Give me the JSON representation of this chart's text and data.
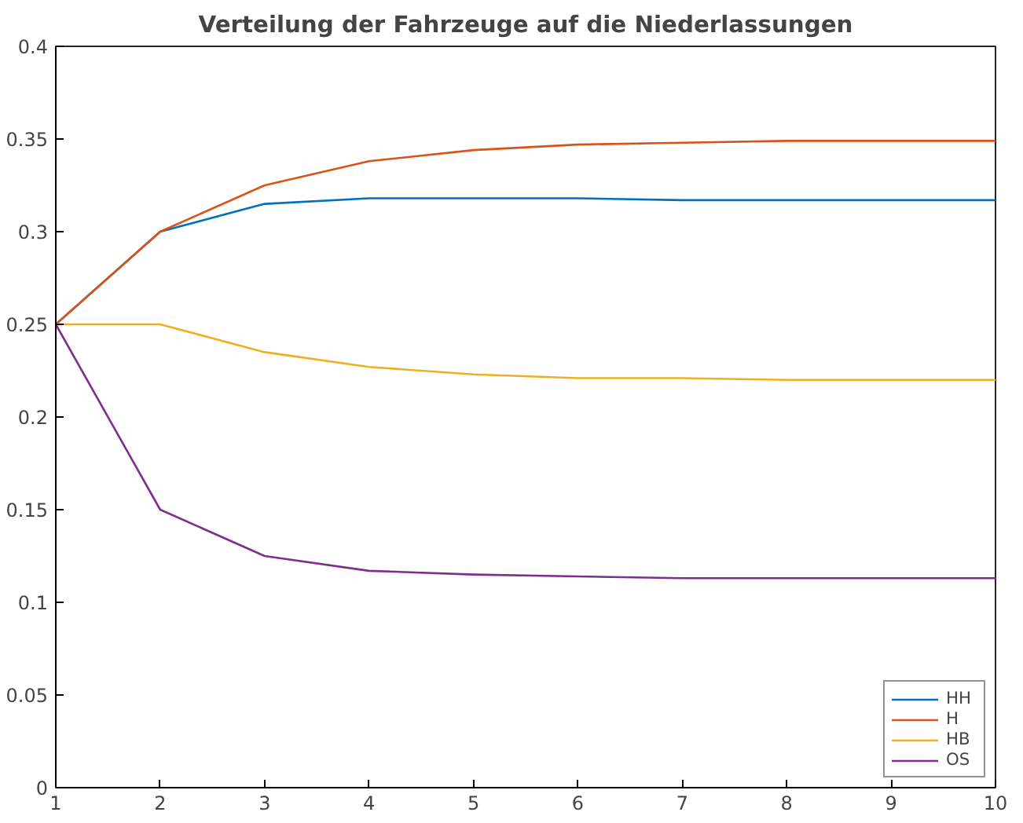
{
  "chart_data": {
    "type": "line",
    "title": "Verteilung der Fahrzeuge auf die Niederlassungen",
    "x": [
      1,
      2,
      3,
      4,
      5,
      6,
      7,
      8,
      9,
      10
    ],
    "series": [
      {
        "name": "HH",
        "color": "#0072bd",
        "values": [
          0.25,
          0.3,
          0.315,
          0.318,
          0.318,
          0.318,
          0.317,
          0.317,
          0.317,
          0.317
        ]
      },
      {
        "name": "H",
        "color": "#d95319",
        "values": [
          0.25,
          0.3,
          0.325,
          0.338,
          0.344,
          0.347,
          0.348,
          0.349,
          0.349,
          0.349
        ]
      },
      {
        "name": "HB",
        "color": "#edb120",
        "values": [
          0.25,
          0.25,
          0.235,
          0.227,
          0.223,
          0.221,
          0.221,
          0.22,
          0.22,
          0.22
        ]
      },
      {
        "name": "OS",
        "color": "#7e2f8e",
        "values": [
          0.25,
          0.15,
          0.125,
          0.117,
          0.115,
          0.114,
          0.113,
          0.113,
          0.113,
          0.113
        ]
      }
    ],
    "xlim": [
      1,
      10
    ],
    "ylim": [
      0,
      0.4
    ],
    "xticks": [
      1,
      2,
      3,
      4,
      5,
      6,
      7,
      8,
      9,
      10
    ],
    "yticks": [
      0,
      0.05,
      0.1,
      0.15,
      0.2,
      0.25,
      0.3,
      0.35,
      0.4
    ],
    "grid": false,
    "legend": "bottom right",
    "marker": "none",
    "line_style": "solid"
  }
}
